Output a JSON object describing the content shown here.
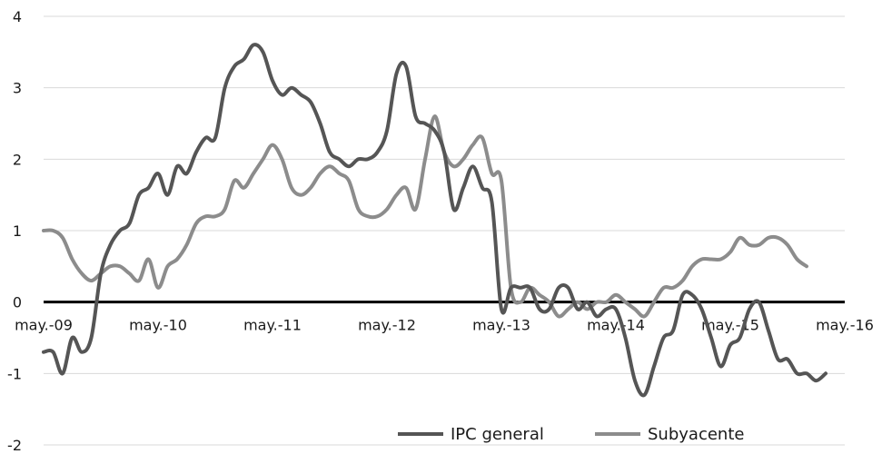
{
  "chart_data": {
    "type": "line",
    "title": "",
    "xlabel": "",
    "ylabel": "",
    "ylim": [
      -2,
      4
    ],
    "yticks": [
      4,
      3,
      2,
      1,
      0,
      -1,
      -2
    ],
    "xtick_labels": [
      "may.-09",
      "may.-10",
      "may.-11",
      "may.-12",
      "may.-13",
      "may.-14",
      "may.-15",
      "may.-16"
    ],
    "x_range": [
      "2009-05",
      "2016-05"
    ],
    "grid": "horizontal",
    "legend": "bottom-right",
    "series": [
      {
        "name": "IPC general",
        "color": "#555555",
        "points": [
          [
            "2009-05",
            -0.7
          ],
          [
            "2009-06",
            -0.7
          ],
          [
            "2009-07",
            -1.0
          ],
          [
            "2009-08",
            -0.5
          ],
          [
            "2009-09",
            -0.7
          ],
          [
            "2009-10",
            -0.5
          ],
          [
            "2009-11",
            0.4
          ],
          [
            "2009-12",
            0.8
          ],
          [
            "2010-01",
            1.0
          ],
          [
            "2010-02",
            1.1
          ],
          [
            "2010-03",
            1.5
          ],
          [
            "2010-04",
            1.6
          ],
          [
            "2010-05",
            1.8
          ],
          [
            "2010-06",
            1.5
          ],
          [
            "2010-07",
            1.9
          ],
          [
            "2010-08",
            1.8
          ],
          [
            "2010-09",
            2.1
          ],
          [
            "2010-10",
            2.3
          ],
          [
            "2010-11",
            2.3
          ],
          [
            "2010-12",
            3.0
          ],
          [
            "2011-01",
            3.3
          ],
          [
            "2011-02",
            3.4
          ],
          [
            "2011-03",
            3.6
          ],
          [
            "2011-04",
            3.5
          ],
          [
            "2011-05",
            3.1
          ],
          [
            "2011-06",
            2.9
          ],
          [
            "2011-07",
            3.0
          ],
          [
            "2011-08",
            2.9
          ],
          [
            "2011-09",
            2.8
          ],
          [
            "2011-10",
            2.5
          ],
          [
            "2011-11",
            2.1
          ],
          [
            "2011-12",
            2.0
          ],
          [
            "2012-01",
            1.9
          ],
          [
            "2012-02",
            2.0
          ],
          [
            "2012-03",
            2.0
          ],
          [
            "2012-04",
            2.1
          ],
          [
            "2012-05",
            2.4
          ],
          [
            "2012-06",
            3.2
          ],
          [
            "2012-07",
            3.3
          ],
          [
            "2012-08",
            2.6
          ],
          [
            "2012-09",
            2.5
          ],
          [
            "2012-10",
            2.4
          ],
          [
            "2012-11",
            2.1
          ],
          [
            "2012-12",
            1.3
          ],
          [
            "2013-01",
            1.6
          ],
          [
            "2013-02",
            1.9
          ],
          [
            "2013-03",
            1.6
          ],
          [
            "2013-04",
            1.4
          ],
          [
            "2013-05",
            -0.1
          ],
          [
            "2013-06",
            0.2
          ],
          [
            "2013-07",
            0.2
          ],
          [
            "2013-08",
            0.2
          ],
          [
            "2013-09",
            -0.1
          ],
          [
            "2013-10",
            -0.1
          ],
          [
            "2013-11",
            0.2
          ],
          [
            "2013-12",
            0.2
          ],
          [
            "2014-01",
            -0.1
          ],
          [
            "2014-02",
            0.0
          ],
          [
            "2014-03",
            -0.2
          ],
          [
            "2014-04",
            -0.1
          ],
          [
            "2014-05",
            -0.1
          ],
          [
            "2014-06",
            -0.5
          ],
          [
            "2014-07",
            -1.1
          ],
          [
            "2014-08",
            -1.3
          ],
          [
            "2014-09",
            -0.9
          ],
          [
            "2014-10",
            -0.5
          ],
          [
            "2014-11",
            -0.4
          ],
          [
            "2014-12",
            0.1
          ],
          [
            "2015-01",
            0.1
          ],
          [
            "2015-02",
            -0.1
          ],
          [
            "2015-03",
            -0.5
          ],
          [
            "2015-04",
            -0.9
          ],
          [
            "2015-05",
            -0.6
          ],
          [
            "2015-06",
            -0.5
          ],
          [
            "2015-07",
            -0.1
          ],
          [
            "2015-08",
            0.0
          ],
          [
            "2015-09",
            -0.4
          ],
          [
            "2015-10",
            -0.8
          ],
          [
            "2015-11",
            -0.8
          ],
          [
            "2015-12",
            -1.0
          ],
          [
            "2016-01",
            -1.0
          ],
          [
            "2016-02",
            -1.1
          ],
          [
            "2016-03",
            -1.0
          ]
        ]
      },
      {
        "name": "Subyacente",
        "color": "#8c8c8c",
        "points": [
          [
            "2009-05",
            1.0
          ],
          [
            "2009-06",
            1.0
          ],
          [
            "2009-07",
            0.9
          ],
          [
            "2009-08",
            0.6
          ],
          [
            "2009-09",
            0.4
          ],
          [
            "2009-10",
            0.3
          ],
          [
            "2009-11",
            0.4
          ],
          [
            "2009-12",
            0.5
          ],
          [
            "2010-01",
            0.5
          ],
          [
            "2010-02",
            0.4
          ],
          [
            "2010-03",
            0.3
          ],
          [
            "2010-04",
            0.6
          ],
          [
            "2010-05",
            0.2
          ],
          [
            "2010-06",
            0.5
          ],
          [
            "2010-07",
            0.6
          ],
          [
            "2010-08",
            0.8
          ],
          [
            "2010-09",
            1.1
          ],
          [
            "2010-10",
            1.2
          ],
          [
            "2010-11",
            1.2
          ],
          [
            "2010-12",
            1.3
          ],
          [
            "2011-01",
            1.7
          ],
          [
            "2011-02",
            1.6
          ],
          [
            "2011-03",
            1.8
          ],
          [
            "2011-04",
            2.0
          ],
          [
            "2011-05",
            2.2
          ],
          [
            "2011-06",
            2.0
          ],
          [
            "2011-07",
            1.6
          ],
          [
            "2011-08",
            1.5
          ],
          [
            "2011-09",
            1.6
          ],
          [
            "2011-10",
            1.8
          ],
          [
            "2011-11",
            1.9
          ],
          [
            "2011-12",
            1.8
          ],
          [
            "2012-01",
            1.7
          ],
          [
            "2012-02",
            1.3
          ],
          [
            "2012-03",
            1.2
          ],
          [
            "2012-04",
            1.2
          ],
          [
            "2012-05",
            1.3
          ],
          [
            "2012-06",
            1.5
          ],
          [
            "2012-07",
            1.6
          ],
          [
            "2012-08",
            1.3
          ],
          [
            "2012-09",
            2.0
          ],
          [
            "2012-10",
            2.6
          ],
          [
            "2012-11",
            2.1
          ],
          [
            "2012-12",
            1.9
          ],
          [
            "2013-01",
            2.0
          ],
          [
            "2013-02",
            2.2
          ],
          [
            "2013-03",
            2.3
          ],
          [
            "2013-04",
            1.8
          ],
          [
            "2013-05",
            1.7
          ],
          [
            "2013-06",
            0.2
          ],
          [
            "2013-07",
            0.0
          ],
          [
            "2013-08",
            0.2
          ],
          [
            "2013-09",
            0.1
          ],
          [
            "2013-10",
            0.0
          ],
          [
            "2013-11",
            -0.2
          ],
          [
            "2013-12",
            -0.1
          ],
          [
            "2014-01",
            0.0
          ],
          [
            "2014-02",
            -0.1
          ],
          [
            "2014-03",
            0.0
          ],
          [
            "2014-04",
            0.0
          ],
          [
            "2014-05",
            0.1
          ],
          [
            "2014-06",
            0.0
          ],
          [
            "2014-07",
            -0.1
          ],
          [
            "2014-08",
            -0.2
          ],
          [
            "2014-09",
            0.0
          ],
          [
            "2014-10",
            0.2
          ],
          [
            "2014-11",
            0.2
          ],
          [
            "2014-12",
            0.3
          ],
          [
            "2015-01",
            0.5
          ],
          [
            "2015-02",
            0.6
          ],
          [
            "2015-03",
            0.6
          ],
          [
            "2015-04",
            0.6
          ],
          [
            "2015-05",
            0.7
          ],
          [
            "2015-06",
            0.9
          ],
          [
            "2015-07",
            0.8
          ],
          [
            "2015-08",
            0.8
          ],
          [
            "2015-09",
            0.9
          ],
          [
            "2015-10",
            0.9
          ],
          [
            "2015-11",
            0.8
          ],
          [
            "2015-12",
            0.6
          ],
          [
            "2016-01",
            0.5
          ]
        ]
      }
    ]
  }
}
